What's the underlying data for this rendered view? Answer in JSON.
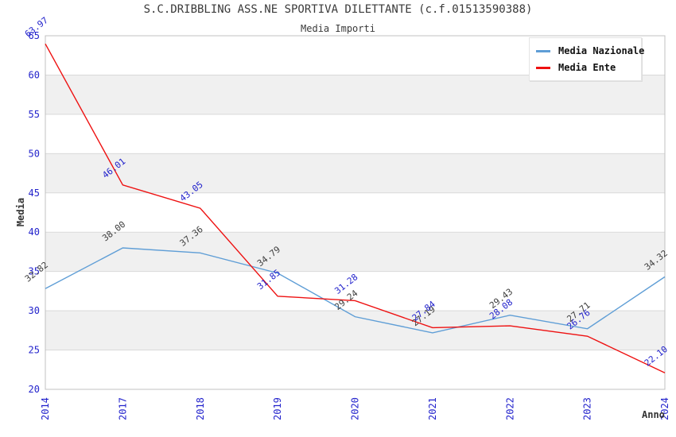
{
  "chart_data": {
    "type": "line",
    "title": "S.C.DRIBBLING ASS.NE SPORTIVA DILETTANTE (c.f.01513590388)",
    "subtitle": "Media Importi",
    "xlabel": "Anno",
    "ylabel": "Media",
    "categories": [
      "2014",
      "2017",
      "2018",
      "2019",
      "2020",
      "2021",
      "2022",
      "2023",
      "2024"
    ],
    "ylim": [
      20,
      65
    ],
    "y_ticks": [
      20,
      25,
      30,
      35,
      40,
      45,
      50,
      55,
      60,
      65
    ],
    "grid": "horizontal-gridlines-with-alternating-bands",
    "band_fill": "#f0f0f0",
    "gridline_color": "#d9d9d9",
    "plot_border_color": "#c0c0c0",
    "axis_tick_color": "#2323cc",
    "legend_position": "top-right",
    "series": [
      {
        "name": "Media Nazionale",
        "color": "#5f9ed6",
        "label_color": "#3d3d3d",
        "values": [
          32.82,
          38.0,
          37.36,
          34.79,
          29.24,
          27.19,
          29.43,
          27.71,
          34.32
        ],
        "labels": [
          "32.82",
          "38.00",
          "37.36",
          "34.79",
          "29.24",
          "27.19",
          "29.43",
          "27.71",
          "34.32"
        ]
      },
      {
        "name": "Media Ente",
        "color": "#ee1111",
        "label_color": "#2323cc",
        "values": [
          63.97,
          46.01,
          43.05,
          31.85,
          31.28,
          27.84,
          28.08,
          26.76,
          22.1
        ],
        "labels": [
          "63.97",
          "46.01",
          "43.05",
          "31.85",
          "31.28",
          "27.84",
          "28.08",
          "26.76",
          "22.10"
        ]
      }
    ]
  }
}
